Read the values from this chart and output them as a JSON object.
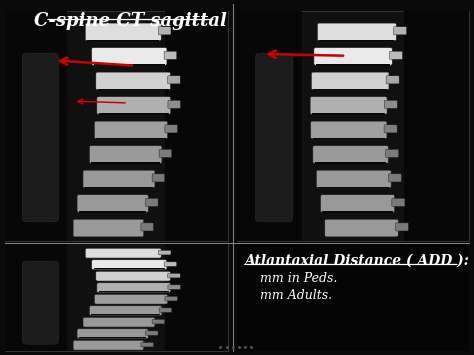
{
  "background_color": "#0a0a0a",
  "title": "C-spine CT sagittal",
  "title_fontsize": 13,
  "title_color": "white",
  "annotation_title": "Atlantaxial Distance ( ADD ):",
  "annotation_line1": "    mm in Peds.",
  "annotation_line2": "    mm Adults.",
  "annotation_color": "white",
  "annotation_fontsize": 10,
  "divider_color": "#888888",
  "arrow_color": "#cc0000",
  "tl": [
    0.01,
    0.32,
    0.48,
    0.97
  ],
  "tr": [
    0.5,
    0.32,
    0.99,
    0.97
  ],
  "bl": [
    0.01,
    0.01,
    0.48,
    0.315
  ],
  "br": [
    0.5,
    0.01,
    0.99,
    0.315
  ]
}
